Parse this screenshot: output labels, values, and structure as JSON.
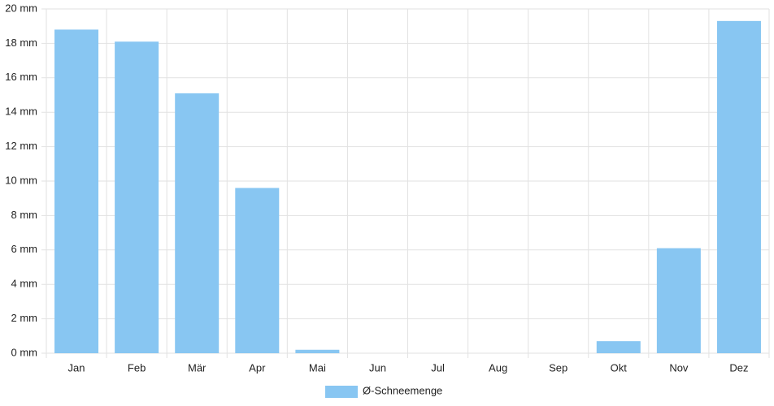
{
  "chart_data": {
    "type": "bar",
    "categories": [
      "Jan",
      "Feb",
      "Mär",
      "Apr",
      "Mai",
      "Jun",
      "Jul",
      "Aug",
      "Sep",
      "Okt",
      "Nov",
      "Dez"
    ],
    "series": [
      {
        "name": "Ø-Schneemenge",
        "color": "#88c6f2",
        "values": [
          18.8,
          18.1,
          15.1,
          9.6,
          0.2,
          0,
          0,
          0,
          0,
          0.7,
          6.1,
          19.3
        ]
      }
    ],
    "ylim": [
      0,
      20
    ],
    "yticks": [
      {
        "value": 0,
        "label": "0 mm"
      },
      {
        "value": 2,
        "label": "2 mm"
      },
      {
        "value": 4,
        "label": "4 mm"
      },
      {
        "value": 6,
        "label": "6 mm"
      },
      {
        "value": 8,
        "label": "8 mm"
      },
      {
        "value": 10,
        "label": "10 mm"
      },
      {
        "value": 12,
        "label": "12 mm"
      },
      {
        "value": 14,
        "label": "14 mm"
      },
      {
        "value": 16,
        "label": "16 mm"
      },
      {
        "value": 18,
        "label": "18 mm"
      },
      {
        "value": 20,
        "label": "20 mm"
      }
    ],
    "grid": true,
    "legend": "bottom"
  }
}
